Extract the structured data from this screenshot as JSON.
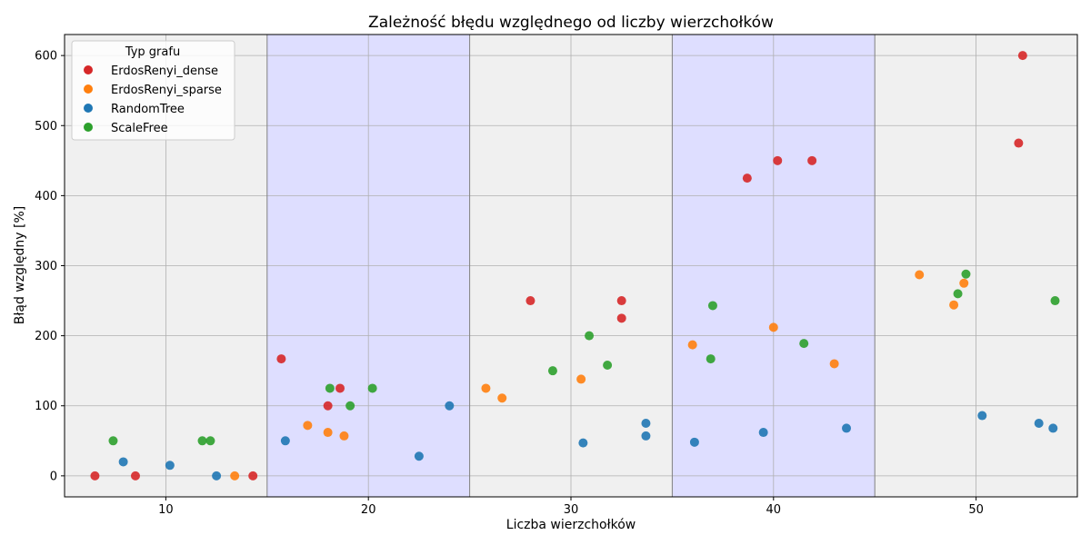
{
  "chart_data": {
    "type": "scatter",
    "title": "Zależność błędu względnego od liczby wierzchołków",
    "xlabel": "Liczba wierzchołków",
    "ylabel": "Błąd względny [%]",
    "xlim": [
      5,
      55
    ],
    "ylim": [
      -30,
      630
    ],
    "xticks": [
      10,
      20,
      30,
      40,
      50
    ],
    "yticks": [
      0,
      100,
      200,
      300,
      400,
      500,
      600
    ],
    "grid": true,
    "background": "#f0f0f0",
    "shaded_bands": [
      {
        "from": 15,
        "to": 25,
        "color": "#dedeff"
      },
      {
        "from": 35,
        "to": 45,
        "color": "#dedeff"
      }
    ],
    "band_edges": [
      15,
      25,
      35,
      45
    ],
    "legend": {
      "title": "Typ grafu",
      "location": "top-left"
    },
    "series": [
      {
        "name": "ErdosRenyi_dense",
        "color": "#d62728",
        "points": [
          [
            6.5,
            0
          ],
          [
            8.5,
            0
          ],
          [
            14.3,
            0
          ],
          [
            15.7,
            167
          ],
          [
            18.0,
            100
          ],
          [
            18.6,
            125
          ],
          [
            28.0,
            250
          ],
          [
            32.5,
            250
          ],
          [
            32.5,
            225
          ],
          [
            38.7,
            425
          ],
          [
            40.2,
            450
          ],
          [
            41.9,
            450
          ],
          [
            52.1,
            475
          ],
          [
            52.3,
            600
          ]
        ]
      },
      {
        "name": "ErdosRenyi_sparse",
        "color": "#ff7f0e",
        "points": [
          [
            13.4,
            0
          ],
          [
            17.0,
            72
          ],
          [
            18.0,
            62
          ],
          [
            18.8,
            57
          ],
          [
            25.8,
            125
          ],
          [
            26.6,
            111
          ],
          [
            30.5,
            138
          ],
          [
            36.0,
            187
          ],
          [
            40.0,
            212
          ],
          [
            43.0,
            160
          ],
          [
            47.2,
            287
          ],
          [
            48.9,
            244
          ],
          [
            49.4,
            275
          ]
        ]
      },
      {
        "name": "RandomTree",
        "color": "#1f77b4",
        "points": [
          [
            7.9,
            20
          ],
          [
            10.2,
            15
          ],
          [
            12.5,
            0
          ],
          [
            15.9,
            50
          ],
          [
            22.5,
            28
          ],
          [
            24.0,
            100
          ],
          [
            30.6,
            47
          ],
          [
            33.7,
            75
          ],
          [
            33.7,
            57
          ],
          [
            36.1,
            48
          ],
          [
            39.5,
            62
          ],
          [
            43.6,
            68
          ],
          [
            50.3,
            86
          ],
          [
            53.1,
            75
          ],
          [
            53.8,
            68
          ]
        ]
      },
      {
        "name": "ScaleFree",
        "color": "#2ca02c",
        "points": [
          [
            7.4,
            50
          ],
          [
            11.8,
            50
          ],
          [
            12.2,
            50
          ],
          [
            18.1,
            125
          ],
          [
            19.1,
            100
          ],
          [
            20.2,
            125
          ],
          [
            29.1,
            150
          ],
          [
            30.9,
            200
          ],
          [
            31.8,
            158
          ],
          [
            37.0,
            243
          ],
          [
            36.9,
            167
          ],
          [
            41.5,
            189
          ],
          [
            49.1,
            260
          ],
          [
            49.5,
            288
          ],
          [
            53.9,
            250
          ]
        ]
      }
    ]
  }
}
